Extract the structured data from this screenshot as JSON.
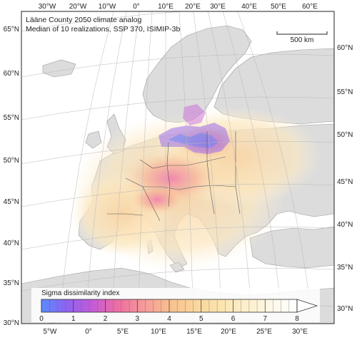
{
  "title": {
    "line1": "Lääne County 2050 climate analog",
    "line2": "Median of 10 realizations, SSP 370, ISIMIP-3b"
  },
  "scale_bar": {
    "label": "500 km"
  },
  "graticule": {
    "top_lon": [
      "30°W",
      "20°W",
      "10°W",
      "0°",
      "10°E",
      "20°E",
      "30°E",
      "40°E",
      "50°E",
      "60°E"
    ],
    "bottom_lon": [
      "5°W",
      "0°",
      "5°E",
      "10°E",
      "15°E",
      "20°E",
      "25°E",
      "30°E"
    ],
    "left_lat": [
      "65°N",
      "60°N",
      "55°N",
      "50°N",
      "45°N",
      "40°N",
      "35°N",
      "30°N"
    ],
    "right_lat": [
      "60°N",
      "55°N",
      "50°N",
      "45°N",
      "40°N",
      "35°N",
      "30°N"
    ]
  },
  "legend": {
    "title": "Sigma dissimilarity index",
    "ticks": [
      "0",
      "1",
      "2",
      "3",
      "4",
      "5",
      "6",
      "7",
      "8"
    ],
    "min": 0,
    "max": 8,
    "colors": [
      "#5a8cff",
      "#8f62f0",
      "#c45bd8",
      "#ef6fa0",
      "#f59a9a",
      "#f8bf8f",
      "#fad59a",
      "#fbe4ad",
      "#fdefcb",
      "#fff8e8",
      "#ffffff"
    ]
  },
  "colors": {
    "land": "#dcdcdc",
    "sea": "#ffffff",
    "border": "#555555",
    "frame": "#222222"
  }
}
